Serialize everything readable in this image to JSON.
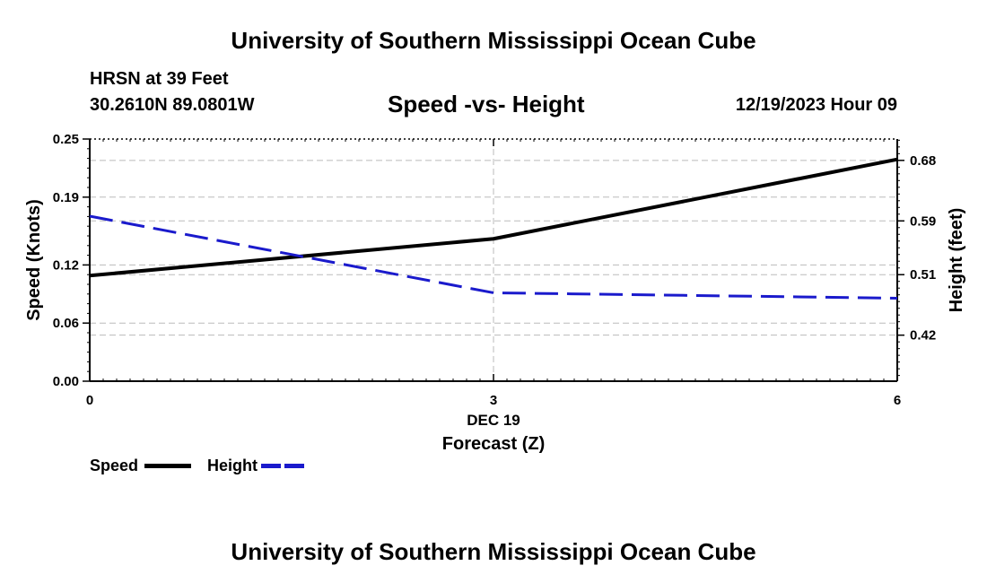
{
  "header": {
    "title": "University of Southern Mississippi Ocean Cube",
    "station": "HRSN at 39 Feet",
    "location": "30.2610N  89.0801W",
    "datetime": "12/19/2023 Hour 09",
    "footer_title": "University of Southern Mississippi Ocean Cube"
  },
  "legend": {
    "speed_label": "Speed",
    "height_label": "Height"
  },
  "chart_data": {
    "type": "line",
    "title": "Speed -vs- Height",
    "xlabel": "Forecast (Z)",
    "x_date_label": "DEC 19",
    "ylabel_left": "Speed (Knots)",
    "ylabel_right": "Height (feet)",
    "x": [
      0,
      3,
      6
    ],
    "x_ticks": [
      "0",
      "3",
      "6"
    ],
    "xlim": [
      0,
      6
    ],
    "ylim_left": [
      0,
      0.25
    ],
    "yticks_left": [
      "0.00",
      "0.06",
      "0.12",
      "0.19",
      "0.25"
    ],
    "ylim_right": [
      0.3515,
      0.7118
    ],
    "yticks_right": [
      "0.42",
      "0.51",
      "0.59",
      "0.68"
    ],
    "grid": true,
    "series": [
      {
        "name": "Speed",
        "axis": "left",
        "style": "solid",
        "color": "#000000",
        "values": [
          0.109,
          0.147,
          0.229
        ]
      },
      {
        "name": "Height",
        "axis": "right",
        "style": "dashed",
        "color": "#1a1acc",
        "values": [
          0.597,
          0.483,
          0.475
        ]
      }
    ]
  }
}
